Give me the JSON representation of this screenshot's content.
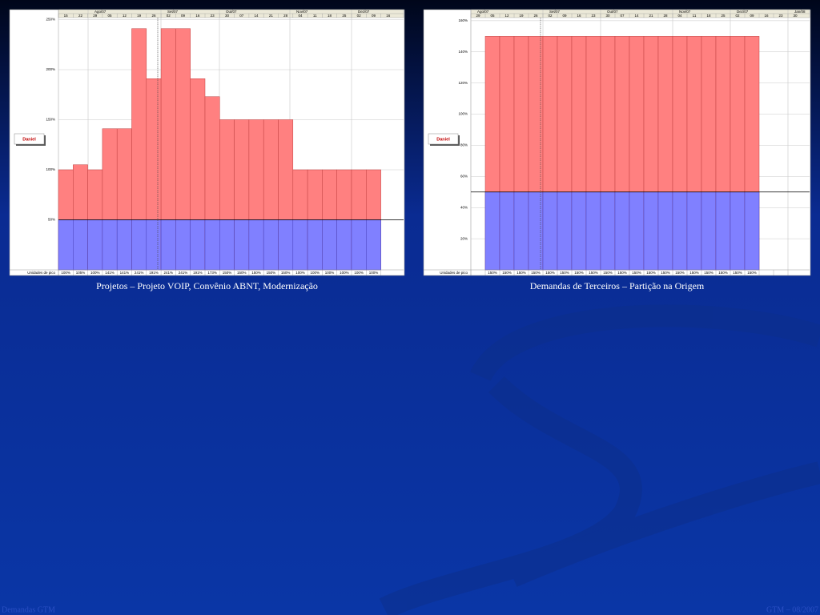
{
  "chart_data": [
    {
      "type": "bar",
      "caption": "Projetos – Projeto VOIP, Convênio ABNT, Modernização",
      "resource": "Daniel",
      "row_label": "Unidades de pico",
      "months": [
        "Ago/07",
        "Set/07",
        "Out/07",
        "Nov/07",
        "Dez/07"
      ],
      "categories": [
        "15",
        "22",
        "29",
        "05",
        "12",
        "19",
        "26",
        "02",
        "09",
        "16",
        "23",
        "30",
        "07",
        "14",
        "21",
        "28",
        "04",
        "11",
        "18",
        "25",
        "02",
        "09",
        "16"
      ],
      "values": [
        100,
        105,
        100,
        141,
        141,
        241,
        191,
        241,
        241,
        191,
        173,
        150,
        150,
        150,
        150,
        150,
        100,
        100,
        100,
        100,
        100,
        100,
        null
      ],
      "value_labels": [
        "100%",
        "105%",
        "100%",
        "141%",
        "141%",
        "241%",
        "191%",
        "241%",
        "241%",
        "191%",
        "173%",
        "150%",
        "150%",
        "150%",
        "150%",
        "150%",
        "100%",
        "100%",
        "100%",
        "100%",
        "100%",
        "100%",
        null
      ],
      "max_units": 50,
      "color": "#8080ff",
      "over_color": "#ff8080",
      "ylim": [
        0,
        252
      ],
      "yticks": [
        {
          "value": 50,
          "label": "50%"
        },
        {
          "value": 100,
          "label": "100%"
        },
        {
          "value": 150,
          "label": "150%"
        },
        {
          "value": 200,
          "label": "200%"
        },
        {
          "value": 250,
          "label": "250%"
        }
      ],
      "grid": true
    },
    {
      "type": "bar",
      "caption": "Demandas de Terceiros – Partição na Origem",
      "resource": "Daniel",
      "row_label": "Unidades de pico",
      "months": [
        "Ago/07",
        "Set/07",
        "Out/07",
        "Nov/07",
        "Dez/07",
        "Jan/08"
      ],
      "categories": [
        "29",
        "05",
        "12",
        "19",
        "26",
        "02",
        "09",
        "16",
        "23",
        "30",
        "07",
        "14",
        "21",
        "28",
        "04",
        "11",
        "18",
        "25",
        "02",
        "09",
        "16",
        "23",
        "30"
      ],
      "values": [
        null,
        150,
        150,
        150,
        150,
        150,
        150,
        150,
        150,
        150,
        150,
        150,
        150,
        150,
        150,
        150,
        150,
        150,
        150,
        150,
        null,
        null,
        null
      ],
      "value_labels": [
        null,
        "150%",
        "150%",
        "150%",
        "150%",
        "150%",
        "150%",
        "150%",
        "150%",
        "150%",
        "150%",
        "150%",
        "150%",
        "150%",
        "150%",
        "150%",
        "150%",
        "150%",
        "150%",
        "150%",
        null,
        null,
        null
      ],
      "max_units": 50,
      "color": "#8080ff",
      "over_color": "#ff8080",
      "ylim": [
        0,
        162
      ],
      "yticks": [
        {
          "value": 20,
          "label": "20%"
        },
        {
          "value": 40,
          "label": "40%"
        },
        {
          "value": 60,
          "label": "60%"
        },
        {
          "value": 80,
          "label": "80%"
        },
        {
          "value": 100,
          "label": "100%"
        },
        {
          "value": 120,
          "label": "120%"
        },
        {
          "value": 140,
          "label": "140%"
        },
        {
          "value": 160,
          "label": "160%"
        }
      ],
      "grid": true
    }
  ],
  "footer": {
    "left": "Demandas GTM",
    "right": "GTM – 08/2007"
  }
}
